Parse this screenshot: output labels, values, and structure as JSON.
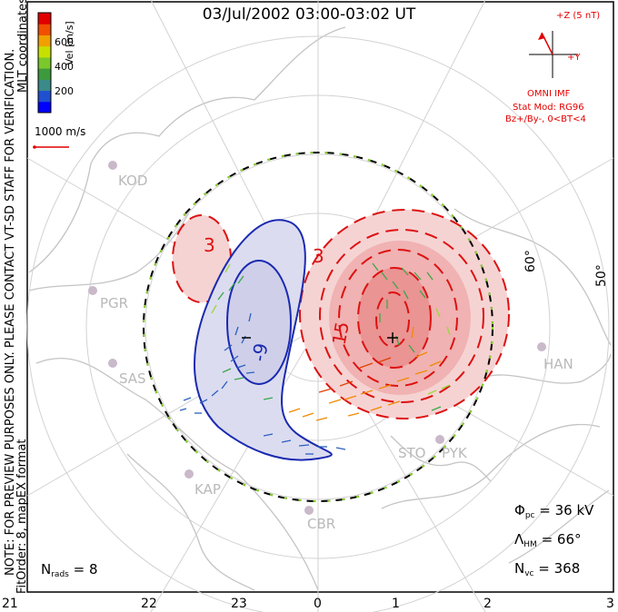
{
  "title": "03/Jul/2002 03:00-03:02 UT",
  "colorbar": {
    "label": "Vel [m/s]",
    "ticks": [
      "600",
      "400",
      "200"
    ],
    "colors": [
      "#0000ff",
      "#2050d0",
      "#3a8a8a",
      "#3c9a3c",
      "#7ac82a",
      "#c8e000",
      "#f0a000",
      "#f05000",
      "#e00000"
    ]
  },
  "coordinates_label": "MLT coordinates",
  "scale_vector": "1000 m/s",
  "side_note_1": "NOTE: FOR PREVIEW PURPOSES ONLY. PLEASE CONTACT VT-SD STAFF FOR VERIFICATION.",
  "side_note_2": "FitOrder: 8,  mapEX format",
  "imf": {
    "z_label": "+Z (5 nT)",
    "y_label": "+Y",
    "source": "OMNI IMF",
    "stat_model": "Stat Mod: RG96",
    "condition": "Bz+/By-,  0<BT<4"
  },
  "stations": [
    "KOD",
    "PGR",
    "SAS",
    "KAP",
    "CBR",
    "STO",
    "PYK",
    "HAN"
  ],
  "contours": [
    "3",
    "3",
    "15",
    "-9"
  ],
  "extrema": [
    "+",
    "-"
  ],
  "latitudes": [
    "60°",
    "50°"
  ],
  "stats": {
    "phi_pc_label": "Φ",
    "phi_pc_sub": "pc",
    "phi_pc_value": " = 36 kV",
    "lambda_hm_label": "Λ",
    "lambda_hm_sub": "HM",
    "lambda_hm_value": " = 66°",
    "n_vc_label": "N",
    "n_vc_sub": "vc",
    "n_vc_value": " = 368",
    "n_rads_label": "N",
    "n_rads_sub": "rads",
    "n_rads_value": " = 8"
  },
  "mlt_ticks": [
    "21",
    "22",
    "23",
    "0",
    "1",
    "2",
    "3"
  ]
}
